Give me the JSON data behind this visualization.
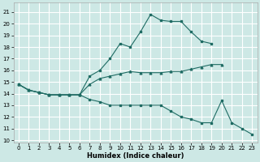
{
  "xlabel": "Humidex (Indice chaleur)",
  "background_color": "#cde8e5",
  "grid_color": "#ffffff",
  "line_color": "#1e6b63",
  "xlim": [
    -0.5,
    23.5
  ],
  "ylim": [
    9.8,
    21.8
  ],
  "yticks": [
    10,
    11,
    12,
    13,
    14,
    15,
    16,
    17,
    18,
    19,
    20,
    21
  ],
  "xticks": [
    0,
    1,
    2,
    3,
    4,
    5,
    6,
    7,
    8,
    9,
    10,
    11,
    12,
    13,
    14,
    15,
    16,
    17,
    18,
    19,
    20,
    21,
    22,
    23
  ],
  "series1_x": [
    0,
    1,
    2,
    3,
    4,
    5,
    6,
    7,
    8,
    9,
    10,
    11,
    12,
    13,
    14,
    15,
    16,
    17,
    18,
    19
  ],
  "series1_y": [
    14.8,
    14.3,
    14.1,
    13.9,
    13.9,
    13.9,
    13.9,
    15.5,
    16.0,
    17.0,
    18.3,
    18.0,
    19.3,
    20.8,
    20.3,
    20.2,
    20.2,
    19.3,
    18.5,
    18.3
  ],
  "series2_x": [
    0,
    1,
    2,
    3,
    4,
    5,
    6,
    7,
    8,
    9,
    10,
    11,
    12,
    13,
    14,
    15,
    16,
    17,
    18,
    19,
    20
  ],
  "series2_y": [
    14.8,
    14.3,
    14.1,
    13.9,
    13.9,
    13.9,
    13.9,
    14.8,
    15.3,
    15.5,
    15.7,
    15.9,
    15.8,
    15.8,
    15.8,
    15.9,
    15.9,
    16.1,
    16.3,
    16.5,
    16.5
  ],
  "series3_x": [
    0,
    1,
    2,
    3,
    4,
    5,
    6,
    7,
    8,
    9,
    10,
    11,
    12,
    13,
    14,
    15,
    16,
    17,
    18,
    19,
    20,
    21,
    22,
    23
  ],
  "series3_y": [
    14.8,
    14.3,
    14.1,
    13.9,
    13.9,
    13.9,
    13.9,
    13.5,
    13.3,
    13.0,
    13.0,
    13.0,
    13.0,
    13.0,
    13.0,
    12.5,
    12.0,
    11.8,
    11.5,
    11.5,
    13.4,
    11.5,
    11.0,
    10.5
  ]
}
